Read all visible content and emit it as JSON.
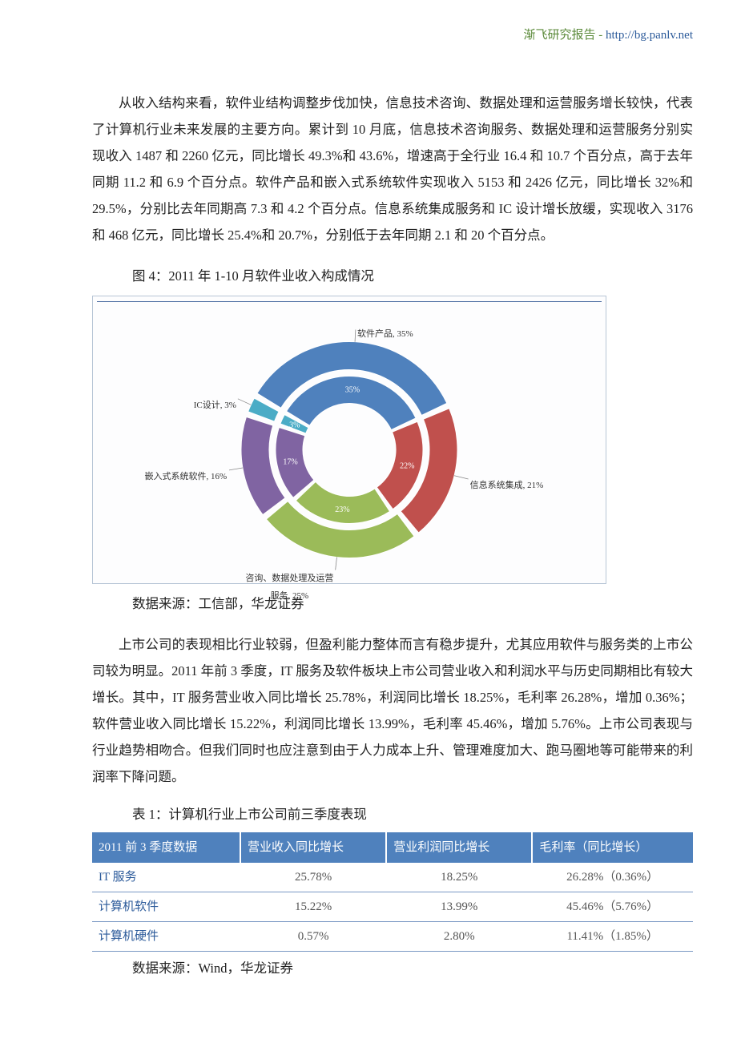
{
  "header": {
    "brand": "渐飞研究报告",
    "sep": " - ",
    "url": "http://bg.panlv.net"
  },
  "para1": "从收入结构来看，软件业结构调整步伐加快，信息技术咨询、数据处理和运营服务增长较快，代表了计算机行业未来发展的主要方向。累计到 10 月底，信息技术咨询服务、数据处理和运营服务分别实现收入 1487 和 2260 亿元，同比增长 49.3%和 43.6%，增速高于全行业 16.4 和 10.7 个百分点，高于去年同期 11.2 和 6.9 个百分点。软件产品和嵌入式系统软件实现收入 5153 和 2426 亿元，同比增长 32%和 29.5%，分别比去年同期高 7.3 和 4.2 个百分点。信息系统集成服务和 IC 设计增长放缓，实现收入 3176 和 468 亿元，同比增长 25.4%和 20.7%，分别低于去年同期 2.1 和 20 个百分点。",
  "fig4": {
    "caption": "图 4：2011 年 1-10 月软件业收入构成情况",
    "source": "数据来源：工信部，华龙证券",
    "outer": {
      "slices": [
        {
          "label": "软件产品",
          "pct": 35,
          "color": "#4f81bd"
        },
        {
          "label": "信息系统集成",
          "pct": 21,
          "color": "#c0504d"
        },
        {
          "label_line1": "咨询、数据处理及运营",
          "label_line2": "服务",
          "pct": 25,
          "color": "#9bbb59"
        },
        {
          "label": "嵌入式系统软件",
          "pct": 16,
          "color": "#8064a2"
        },
        {
          "label": "IC设计",
          "pct": 3,
          "color": "#4bacc6"
        }
      ]
    },
    "inner": {
      "slices": [
        {
          "pct": 35,
          "color": "#4f81bd"
        },
        {
          "pct": 22,
          "color": "#c0504d"
        },
        {
          "pct": 23,
          "color": "#9bbb59"
        },
        {
          "pct": 17,
          "color": "#8064a2"
        },
        {
          "pct": 3,
          "color": "#4bacc6"
        }
      ]
    },
    "gap_deg": 3,
    "outer_r1": 100,
    "outer_r2": 135,
    "inner_r1": 58,
    "inner_r2": 92,
    "bg": "#fdfdfe",
    "start_angle": -60
  },
  "para2": "上市公司的表现相比行业较弱，但盈利能力整体而言有稳步提升，尤其应用软件与服务类的上市公司较为明显。2011 年前 3 季度，IT 服务及软件板块上市公司营业收入和利润水平与历史同期相比有较大增长。其中，IT 服务营业收入同比增长 25.78%，利润同比增长 18.25%，毛利率 26.28%，增加 0.36%；软件营业收入同比增长 15.22%，利润同比增长 13.99%，毛利率 45.46%，增加 5.76%。上市公司表现与行业趋势相吻合。但我们同时也应注意到由于人力成本上升、管理难度加大、跑马圈地等可能带来的利润率下降问题。",
  "table1": {
    "caption": "表 1：计算机行业上市公司前三季度表现",
    "columns": [
      "2011 前 3 季度数据",
      "营业收入同比增长",
      "营业利润同比增长",
      "毛利率（同比增长）"
    ],
    "rows": [
      [
        "IT 服务",
        "25.78%",
        "18.25%",
        "26.28%（0.36%）"
      ],
      [
        "计算机软件",
        "15.22%",
        "13.99%",
        "45.46%（5.76%）"
      ],
      [
        "计算机硬件",
        "0.57%",
        "2.80%",
        "11.41%（1.85%）"
      ]
    ],
    "header_bg": "#4f81bd",
    "header_color": "#ffffff",
    "rowlabel_color": "#2b5a9a",
    "border_color": "#7a98c4",
    "source": "数据来源：Wind，华龙证券"
  }
}
